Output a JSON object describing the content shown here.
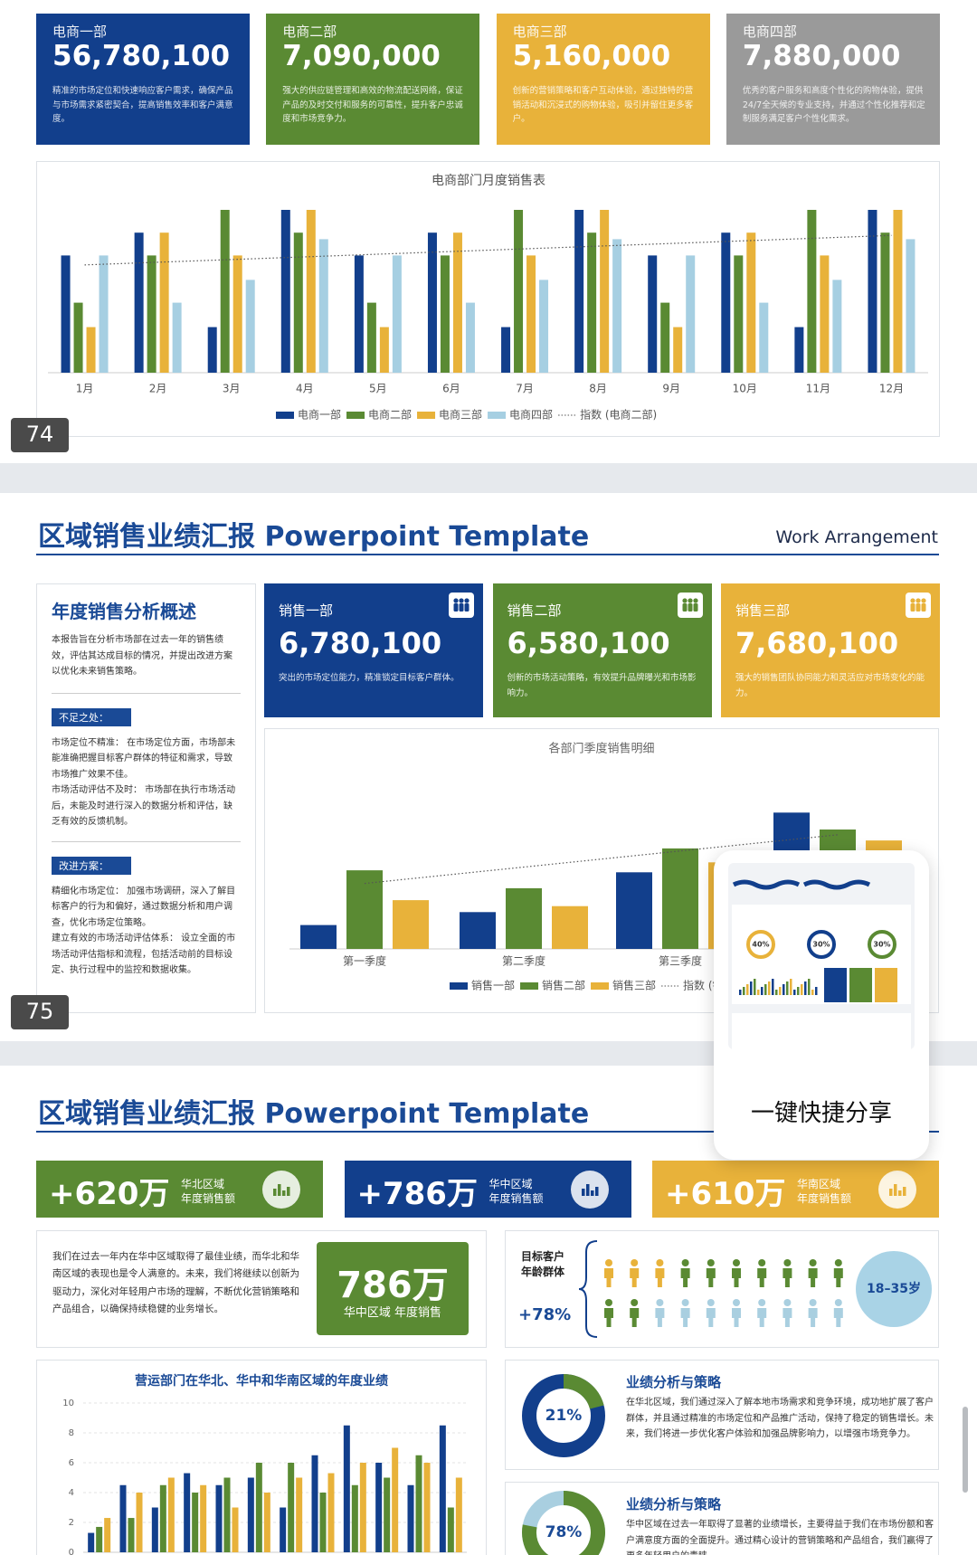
{
  "slide74": {
    "badge": "74",
    "cards": [
      {
        "name": "电商一部",
        "value": "56,780,100",
        "desc": "精准的市场定位和快速响应客户需求，确保产品与市场需求紧密契合，提高销售效率和客户满意度。",
        "color": "#123f8c"
      },
      {
        "name": "电商二部",
        "value": "7,090,000",
        "desc": "强大的供应链管理和高效的物流配送网络，保证产品的及时交付和服务的可靠性，提升客户忠诚度和市场竞争力。",
        "color": "#5a8a33"
      },
      {
        "name": "电商三部",
        "value": "5,160,000",
        "desc": "创新的营销策略和客户互动体验，通过独特的营销活动和沉浸式的购物体验，吸引并留住更多客户。",
        "color": "#e8b23a"
      },
      {
        "name": "电商四部",
        "value": "7,880,000",
        "desc": "优秀的客户服务和高度个性化的购物体验，提供24/7全天候的专业支持，并通过个性化推荐和定制服务满足客户个性化需求。",
        "color": "#9a9a9a"
      }
    ]
  },
  "chart_data": [
    {
      "type": "bar",
      "title": "电商部门月度销售表",
      "categories": [
        "1月",
        "2月",
        "3月",
        "4月",
        "5月",
        "6月",
        "7月",
        "8月",
        "9月",
        "10月",
        "11月",
        "12月"
      ],
      "series": [
        {
          "name": "电商一部",
          "color": "#123f8c",
          "values": [
            72,
            86,
            28,
            100,
            72,
            86,
            28,
            100,
            72,
            86,
            28,
            100
          ]
        },
        {
          "name": "电商二部",
          "color": "#5a8a33",
          "values": [
            43,
            72,
            100,
            86,
            43,
            72,
            100,
            86,
            43,
            72,
            100,
            86
          ]
        },
        {
          "name": "电商三部",
          "color": "#e8b23a",
          "values": [
            28,
            86,
            72,
            100,
            28,
            86,
            72,
            100,
            28,
            86,
            72,
            100
          ]
        },
        {
          "name": "电商四部",
          "color": "#a6cfe2",
          "values": [
            72,
            43,
            57,
            82,
            72,
            43,
            57,
            82,
            72,
            43,
            57,
            82
          ]
        }
      ],
      "trendline": {
        "name": "指数 (电商二部)",
        "of": "电商二部"
      },
      "ylim": [
        0,
        105
      ]
    },
    {
      "type": "bar",
      "title": "各部门季度销售明细",
      "categories": [
        "第一季度",
        "第二季度",
        "第三季度",
        null
      ],
      "series": [
        {
          "name": "销售一部",
          "color": "#123f8c",
          "values": [
            24,
            37,
            77,
            137
          ]
        },
        {
          "name": "销售二部",
          "color": "#5a8a33",
          "values": [
            79,
            61,
            101,
            120
          ]
        },
        {
          "name": "销售三部",
          "color": "#e8b23a",
          "values": [
            49,
            43,
            87,
            109
          ]
        }
      ],
      "trendline": {
        "name": "指数 (销售二部)",
        "of": "销售二部"
      },
      "ylim": [
        0,
        150
      ]
    },
    {
      "type": "bar",
      "title": "营运部门在华北、华中和华南区域的年度业绩",
      "categories": [
        null,
        null,
        null,
        null,
        null,
        null,
        null,
        null,
        null,
        null,
        null,
        null
      ],
      "series": [
        {
          "color": "#123f8c",
          "values": [
            1.3,
            4.5,
            3,
            5.3,
            4.5,
            5,
            3,
            6.5,
            8.5,
            6,
            4.5,
            8.5
          ]
        },
        {
          "color": "#5a8a33",
          "values": [
            1.7,
            2.3,
            4.5,
            4,
            5,
            6,
            6,
            4,
            4.5,
            5,
            6.5,
            3
          ]
        },
        {
          "color": "#e8b23a",
          "values": [
            2.3,
            4,
            5,
            4.5,
            3,
            4,
            5,
            5.3,
            6,
            7,
            6,
            5
          ]
        }
      ],
      "ylim": [
        0,
        10
      ],
      "yticks": [
        0,
        2,
        4,
        6,
        8,
        10
      ],
      "grid": true
    },
    {
      "type": "donut",
      "values": [
        21
      ],
      "value_labels": [
        "21%"
      ],
      "color": "#5a8a33",
      "track": "#123f8c"
    },
    {
      "type": "donut",
      "values": [
        78
      ],
      "value_labels": [
        "78%"
      ],
      "color": "#5a8a33",
      "track": "#a9cfe0"
    }
  ],
  "slide75": {
    "title": "区域销售业绩汇报 Powerpoint Template",
    "subtitle": "Work Arrangement",
    "badge": "75",
    "overview": {
      "heading": "年度销售分析概述",
      "intro": "本报告旨在分析市场部在过去一年的销售绩效，评估其达成目标的情况，并提出改进方案以优化未来销售策略。",
      "sections": [
        {
          "label": "不足之处：",
          "items": [
            "市场定位不精准： 在市场定位方面，市场部未能准确把握目标客户群体的特征和需求，导致市场推广效果不佳。",
            "市场活动评估不及时： 市场部在执行市场活动后，未能及时进行深入的数据分析和评估，缺乏有效的反馈机制。"
          ]
        },
        {
          "label": "改进方案：",
          "items": [
            "精细化市场定位： 加强市场调研，深入了解目标客户的行为和偏好，通过数据分析和用户调查，优化市场定位策略。",
            "建立有效的市场活动评估体系： 设立全面的市场活动评估指标和流程，包括活动前的目标设定、执行过程中的监控和数据收集。"
          ]
        }
      ]
    },
    "cards": [
      {
        "name": "销售一部",
        "value": "6,780,100",
        "desc": "突出的市场定位能力，精准锁定目标客户群体。",
        "color": "#123f8c"
      },
      {
        "name": "销售二部",
        "value": "6,580,100",
        "desc": "创新的市场活动策略，有效提升品牌曝光和市场影响力。",
        "color": "#5a8a33"
      },
      {
        "name": "销售三部",
        "value": "7,680,100",
        "desc": "强大的销售团队协同能力和灵活应对市场变化的能力。",
        "color": "#e8b23a"
      }
    ]
  },
  "slide76": {
    "title": "区域销售业绩汇报 Powerpoint Template",
    "stats": [
      {
        "value": "+620万",
        "region": "华北区域",
        "label": "年度销售额",
        "color": "#5a8a33"
      },
      {
        "value": "+786万",
        "region": "华中区域",
        "label": "年度销售额",
        "color": "#123f8c"
      },
      {
        "value": "+610万",
        "region": "华南区域",
        "label": "年度销售额",
        "color": "#e8b23a"
      }
    ],
    "summary": {
      "text": "我们在过去一年内在华中区域取得了最佳业绩，而华北和华南区域的表现也是令人满意的。未来，我们将继续以创新为驱动力，深化对年轻用户市场的理解，不断优化营销策略和产品组合，以确保持续稳健的业务增长。",
      "highlight": "786万",
      "highlight_label": "华中区域 年度销售"
    },
    "audience": {
      "label": [
        "目标客户",
        "年龄群体"
      ],
      "growth": "+78%",
      "age": "18–35岁"
    },
    "analysis": [
      {
        "title": "业绩分析与策略",
        "text": "在华北区域，我们通过深入了解本地市场需求和竞争环境，成功地扩展了客户群体，并且通过精准的市场定位和产品推广活动，保持了稳定的销售增长。未来，我们将进一步优化客户体验和加强品牌影响力，以增强市场竞争力。"
      },
      {
        "title": "业绩分析与策略",
        "text": "华中区域在过去一年取得了显著的业绩增长，主要得益于我们在市场份额和客户满意度方面的全面提升。通过精心设计的营销策略和产品组合，我们赢得了更多年轻用户的青睐。"
      }
    ]
  },
  "share": {
    "label": "一键快捷分享",
    "thumb_labels": [
      "40%",
      "30%",
      "30%"
    ]
  }
}
